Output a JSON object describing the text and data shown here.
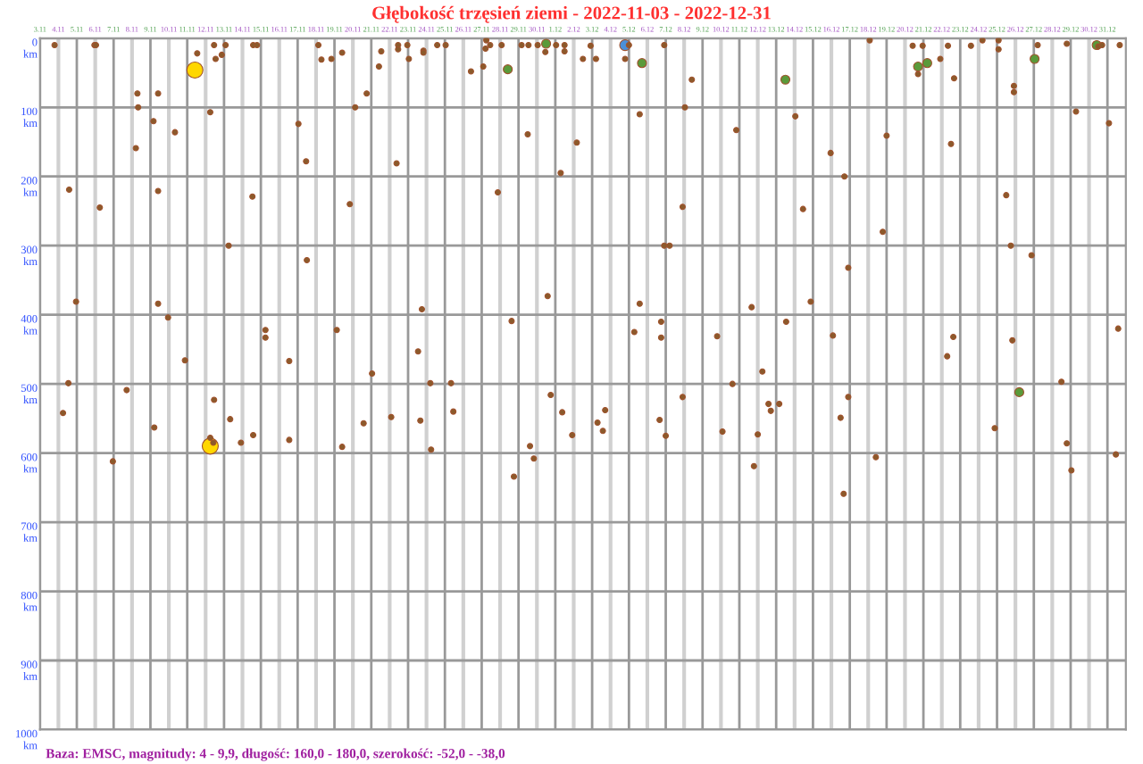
{
  "chart_data": {
    "type": "bubble",
    "title": "Głębokość trzęsień ziemi - 2022-11-03 - 2022-12-31",
    "annotations": [
      "Baza: EMSC, magnitudy: 4 - 9,9, długość: 160,0 - 180,0, szerokość: -52,0 - -38,0"
    ],
    "xlim": [
      "2022-11-03",
      "2023-01-01"
    ],
    "xticks": [
      {
        "value": "2022-11-03",
        "label": "3.11"
      },
      {
        "value": "2022-11-04",
        "label": "4.11"
      },
      {
        "value": "2022-11-05",
        "label": "5.11"
      },
      {
        "value": "2022-11-06",
        "label": "6.11"
      },
      {
        "value": "2022-11-07",
        "label": "7.11"
      },
      {
        "value": "2022-11-08",
        "label": "8.11"
      },
      {
        "value": "2022-11-09",
        "label": "9.11"
      },
      {
        "value": "2022-11-10",
        "label": "10.11"
      },
      {
        "value": "2022-11-11",
        "label": "11.11"
      },
      {
        "value": "2022-11-12",
        "label": "12.11"
      },
      {
        "value": "2022-11-13",
        "label": "13.11"
      },
      {
        "value": "2022-11-14",
        "label": "14.11"
      },
      {
        "value": "2022-11-15",
        "label": "15.11"
      },
      {
        "value": "2022-11-16",
        "label": "16.11"
      },
      {
        "value": "2022-11-17",
        "label": "17.11"
      },
      {
        "value": "2022-11-18",
        "label": "18.11"
      },
      {
        "value": "2022-11-19",
        "label": "19.11"
      },
      {
        "value": "2022-11-20",
        "label": "20.11"
      },
      {
        "value": "2022-11-21",
        "label": "21.11"
      },
      {
        "value": "2022-11-22",
        "label": "22.11"
      },
      {
        "value": "2022-11-23",
        "label": "23.11"
      },
      {
        "value": "2022-11-24",
        "label": "24.11"
      },
      {
        "value": "2022-11-25",
        "label": "25.11"
      },
      {
        "value": "2022-11-26",
        "label": "26.11"
      },
      {
        "value": "2022-11-27",
        "label": "27.11"
      },
      {
        "value": "2022-11-28",
        "label": "28.11"
      },
      {
        "value": "2022-11-29",
        "label": "29.11"
      },
      {
        "value": "2022-11-30",
        "label": "30.11"
      },
      {
        "value": "2022-12-01",
        "label": "1.12"
      },
      {
        "value": "2022-12-02",
        "label": "2.12"
      },
      {
        "value": "2022-12-03",
        "label": "3.12"
      },
      {
        "value": "2022-12-04",
        "label": "4.12"
      },
      {
        "value": "2022-12-05",
        "label": "5.12"
      },
      {
        "value": "2022-12-06",
        "label": "6.12"
      },
      {
        "value": "2022-12-07",
        "label": "7.12"
      },
      {
        "value": "2022-12-08",
        "label": "8.12"
      },
      {
        "value": "2022-12-09",
        "label": "9.12"
      },
      {
        "value": "2022-12-10",
        "label": "10.12"
      },
      {
        "value": "2022-12-11",
        "label": "11.12"
      },
      {
        "value": "2022-12-12",
        "label": "12.12"
      },
      {
        "value": "2022-12-13",
        "label": "13.12"
      },
      {
        "value": "2022-12-14",
        "label": "14.12"
      },
      {
        "value": "2022-12-15",
        "label": "15.12"
      },
      {
        "value": "2022-12-16",
        "label": "16.12"
      },
      {
        "value": "2022-12-17",
        "label": "17.12"
      },
      {
        "value": "2022-12-18",
        "label": "18.12"
      },
      {
        "value": "2022-12-19",
        "label": "19.12"
      },
      {
        "value": "2022-12-20",
        "label": "20.12"
      },
      {
        "value": "2022-12-21",
        "label": "21.12"
      },
      {
        "value": "2022-12-22",
        "label": "22.12"
      },
      {
        "value": "2022-12-23",
        "label": "23.12"
      },
      {
        "value": "2022-12-24",
        "label": "24.12"
      },
      {
        "value": "2022-12-25",
        "label": "25.12"
      },
      {
        "value": "2022-12-26",
        "label": "26.12"
      },
      {
        "value": "2022-12-27",
        "label": "27.12"
      },
      {
        "value": "2022-12-28",
        "label": "28.12"
      },
      {
        "value": "2022-12-29",
        "label": "29.12"
      },
      {
        "value": "2022-12-30",
        "label": "30.12"
      },
      {
        "value": "2022-12-31",
        "label": "31.12"
      }
    ],
    "ylim": [
      1000,
      0
    ],
    "yticks": [
      {
        "value": 0,
        "label": "0\nkm"
      },
      {
        "value": 100,
        "label": "100\nkm"
      },
      {
        "value": 200,
        "label": "200\nkm"
      },
      {
        "value": 300,
        "label": "300\nkm"
      },
      {
        "value": 400,
        "label": "400\nkm"
      },
      {
        "value": 500,
        "label": "500\nkm"
      },
      {
        "value": 600,
        "label": "600\nkm"
      },
      {
        "value": 700,
        "label": "700\nkm"
      },
      {
        "value": 800,
        "label": "800\nkm"
      },
      {
        "value": 900,
        "label": "900\nkm"
      },
      {
        "value": 1000,
        "label": "1000\nkm"
      }
    ],
    "grid": true,
    "series": [
      {
        "color": "#8b5a2b",
        "x": [
          "2022-11-03T19:00",
          "2022-11-04T14:00",
          "2022-11-05T23:00",
          "2022-11-06T01:00",
          "2022-11-06T06:00",
          "2022-11-08T07:00",
          "2022-11-08T08:00",
          "2022-11-08T05:00",
          "2022-11-09T04:00",
          "2022-11-09T10:00",
          "2022-11-09T10:00",
          "2022-11-10T08:00",
          "2022-11-11T13:00",
          "2022-11-12T06:00",
          "2022-11-12T13:00",
          "2022-11-12T11:00",
          "2022-11-12T21:00",
          "2022-11-13T02:00",
          "2022-11-13T06:00",
          "2022-11-14T13:00",
          "2022-11-14T14:00",
          "2022-11-14T19:00",
          "2022-11-17T01:00",
          "2022-11-17T11:00",
          "2022-11-18T03:00",
          "2022-11-18T07:00",
          "2022-11-18T20:00",
          "2022-11-19T10:00",
          "2022-11-19T20:00",
          "2022-11-20T03:00",
          "2022-11-20T18:00",
          "2022-11-21T10:00",
          "2022-11-21T13:00",
          "2022-11-22T09:00",
          "2022-11-22T11:00",
          "2022-11-22T11:00",
          "2022-11-22T23:00",
          "2022-11-23T01:00",
          "2022-11-23T20:00",
          "2022-11-23T20:00",
          "2022-11-24T14:00",
          "2022-11-25T01:00",
          "2022-11-26T10:00",
          "2022-11-27T02:00",
          "2022-11-27T05:00",
          "2022-11-27T06:00",
          "2022-11-27T11:00",
          "2022-11-27T21:00",
          "2022-11-28T02:00",
          "2022-11-29T04:00",
          "2022-11-29T13:00",
          "2022-11-29T12:00",
          "2022-11-30T01:00",
          "2022-11-30T11:00",
          "2022-12-01T01:00",
          "2022-12-01T12:00",
          "2022-12-01T12:00",
          "2022-12-01T07:00",
          "2022-12-02T04:00",
          "2022-12-02T12:00",
          "2022-12-02T22:00",
          "2022-12-03T05:00",
          "2022-12-05T00:00",
          "2022-12-04T19:00",
          "2022-12-05T14:00",
          "2022-12-06T22:00",
          "2022-12-08T10:00",
          "2022-12-08T01:00",
          "2022-12-07T22:00",
          "2022-12-06T22:00",
          "2022-12-07T05:00",
          "2022-12-10T20:00",
          "2022-12-14T01:00",
          "2022-12-14T11:00",
          "2022-12-15T23:00",
          "2022-12-16T17:00",
          "2022-12-18T02:00",
          "2022-12-19T00:00",
          "2022-12-18T19:00",
          "2022-12-20T10:00",
          "2022-12-20T23:00",
          "2022-12-20T17:00",
          "2022-12-21T22:00",
          "2022-12-22T08:00",
          "2022-12-22T16:00",
          "2022-12-22T12:00",
          "2022-12-23T14:00",
          "2022-12-24T05:00",
          "2022-12-25T02:00",
          "2022-12-25T02:00",
          "2022-12-25T22:00",
          "2022-12-25T22:00",
          "2022-12-25T12:00",
          "2022-12-25T18:00",
          "2022-12-27T05:00",
          "2022-12-28T19:00",
          "2022-12-29T07:00",
          "2022-12-30T12:00",
          "2022-12-30T17:00",
          "2022-12-31T02:00",
          "2022-12-31T16:00",
          "2022-11-04T23:00",
          "2022-11-04T13:00",
          "2022-11-04T06:00",
          "2022-11-06T23:00",
          "2022-11-07T17:00",
          "2022-11-09T10:00",
          "2022-11-09T23:00",
          "2022-11-09T05:00",
          "2022-11-10T21:00",
          "2022-11-12T11:00",
          "2022-11-12T06:00",
          "2022-11-12T10:00",
          "2022-11-13T08:00",
          "2022-11-13T22:00",
          "2022-11-14T14:00",
          "2022-11-15T06:00",
          "2022-11-15T06:00",
          "2022-11-16T13:00",
          "2022-11-16T13:00",
          "2022-11-17T12:00",
          "2022-11-19T03:00",
          "2022-11-19T10:00",
          "2022-11-20T14:00",
          "2022-11-21T01:00",
          "2022-11-22T02:00",
          "2022-11-23T18:00",
          "2022-11-23T13:00",
          "2022-11-24T05:00",
          "2022-11-23T16:00",
          "2022-11-24T06:00",
          "2022-11-25T08:00",
          "2022-11-25T11:00",
          "2022-11-28T15:00",
          "2022-11-29T15:00",
          "2022-11-29T20:00",
          "2022-11-28T18:00",
          "2022-11-30T14:00",
          "2022-11-30T18:00",
          "2022-12-01T09:00",
          "2022-12-01T22:00",
          "2022-12-26T21:00",
          "2022-12-16T22:00",
          "2022-12-05T14:00",
          "2022-12-05T07:00",
          "2022-12-06T18:00",
          "2022-12-06T18:00",
          "2022-12-07T22:00",
          "2022-12-03T07:00",
          "2022-12-03T17:00",
          "2022-12-03T14:00",
          "2022-12-06T16:00",
          "2022-12-07T00:00",
          "2022-12-09T19:00",
          "2022-12-10T15:00",
          "2022-12-10T02:00",
          "2022-12-11T16:00",
          "2022-12-12T06:00",
          "2022-12-12T14:00",
          "2022-12-12T17:00",
          "2022-12-13T04:00",
          "2022-12-12T00:00",
          "2022-12-11T19:00",
          "2022-12-13T13:00",
          "2022-12-14T21:00",
          "2022-12-16T02:00",
          "2022-12-16T22:00",
          "2022-12-16T12:00",
          "2022-12-18T10:00",
          "2022-12-16T16:00",
          "2022-12-22T15:00",
          "2022-12-22T07:00",
          "2022-12-25T20:00",
          "2022-12-24T21:00",
          "2022-12-28T12:00",
          "2022-12-28T19:00",
          "2022-12-29T01:00",
          "2022-12-31T11:00",
          "2022-12-31T14:00"
        ],
        "values": [
          10,
          219,
          10,
          10,
          245,
          80,
          100,
          159,
          120,
          80,
          221,
          136,
          22,
          107,
          30,
          10,
          24,
          10,
          300,
          229,
          10,
          10,
          124,
          178,
          10,
          31,
          30,
          21,
          240,
          100,
          80,
          41,
          19,
          181,
          10,
          16,
          10,
          30,
          18,
          21,
          10,
          10,
          48,
          41,
          15,
          3,
          10,
          223,
          10,
          10,
          10,
          139,
          10,
          20,
          10,
          19,
          10,
          195,
          151,
          30,
          11,
          30,
          10,
          30,
          110,
          10,
          60,
          100,
          244,
          300,
          300,
          133,
          113,
          247,
          166,
          200,
          3,
          141,
          280,
          11,
          11,
          52,
          30,
          11,
          58,
          153,
          11,
          3,
          3,
          16,
          69,
          78,
          227,
          300,
          10,
          8,
          106,
          12,
          10,
          123,
          10,
          381,
          499,
          542,
          612,
          509,
          384,
          404,
          563,
          466,
          523,
          578,
          585,
          551,
          585,
          574,
          422,
          433,
          467,
          581,
          321,
          422,
          591,
          557,
          485,
          548,
          392,
          453,
          499,
          553,
          595,
          499,
          540,
          409,
          590,
          608,
          634,
          373,
          516,
          541,
          574,
          314,
          332,
          384,
          425,
          410,
          433,
          519,
          556,
          538,
          568,
          552,
          575,
          431,
          500,
          569,
          389,
          482,
          529,
          539,
          529,
          573,
          619,
          410,
          381,
          430,
          519,
          549,
          606,
          659,
          432,
          460,
          437,
          564,
          497,
          586,
          625,
          602,
          420
        ],
        "sizes": [
          0.11,
          0.11,
          0.11,
          0.11,
          0.11,
          0.11,
          0.11,
          0.11,
          0.11,
          0.11,
          0.11,
          0.11,
          0.11,
          0.11,
          0.11,
          0.11,
          0.11,
          0.11,
          0.11,
          0.11,
          0.11,
          0.11,
          0.11,
          0.11,
          0.11,
          0.11,
          0.11,
          0.11,
          0.11,
          0.11,
          0.11,
          0.11,
          0.11,
          0.11,
          0.11,
          0.11,
          0.11,
          0.11,
          0.11,
          0.11,
          0.11,
          0.11,
          0.11,
          0.11,
          0.11,
          0.11,
          0.11,
          0.11,
          0.11,
          0.11,
          0.11,
          0.11,
          0.11,
          0.11,
          0.11,
          0.11,
          0.11,
          0.11,
          0.11,
          0.11,
          0.11,
          0.11,
          0.11,
          0.11,
          0.11,
          0.11,
          0.11,
          0.11,
          0.11,
          0.11,
          0.11,
          0.11,
          0.11,
          0.11,
          0.11,
          0.11,
          0.11,
          0.11,
          0.11,
          0.11,
          0.11,
          0.11,
          0.11,
          0.11,
          0.11,
          0.11,
          0.11,
          0.11,
          0.11,
          0.11,
          0.11,
          0.11,
          0.11,
          0.11,
          0.11,
          0.11,
          0.11,
          0.11,
          0.11,
          0.11,
          0.11,
          0.11,
          0.11,
          0.11,
          0.11,
          0.11,
          0.11,
          0.11,
          0.11,
          0.11,
          0.11,
          0.11,
          0.11,
          0.11,
          0.11,
          0.11,
          0.11,
          0.11,
          0.11,
          0.11,
          0.11,
          0.11,
          0.11,
          0.11,
          0.11,
          0.11,
          0.11,
          0.11,
          0.11,
          0.11,
          0.11,
          0.11,
          0.11,
          0.11,
          0.11,
          0.11,
          0.11,
          0.11,
          0.11,
          0.11,
          0.11,
          0.11,
          0.11,
          0.11,
          0.11,
          0.11,
          0.11,
          0.11,
          0.11,
          0.11,
          0.11,
          0.11,
          0.11,
          0.11,
          0.11,
          0.11,
          0.11,
          0.11,
          0.11,
          0.11,
          0.11,
          0.11,
          0.11,
          0.11,
          0.11,
          0.11,
          0.11,
          0.11,
          0.11,
          0.11,
          0.11,
          0.11,
          0.11,
          0.11,
          0.11,
          0.11,
          0.11,
          0.11,
          0.11
        ]
      },
      {
        "color": "#5a9a3a",
        "x": [
          "2022-11-28T10:00",
          "2022-11-30T12:00",
          "2022-12-05T17:00",
          "2022-12-13T12:00",
          "2022-12-20T17:00",
          "2022-12-21T05:00",
          "2022-12-27T01:00",
          "2022-12-30T10:00",
          "2022-12-26T05:00"
        ],
        "values": [
          45,
          8,
          36,
          60,
          41,
          36,
          30,
          10,
          512
        ],
        "sizes": [
          0.31,
          0.31,
          0.31,
          0.31,
          0.31,
          0.31,
          0.31,
          0.31,
          0.31
        ]
      },
      {
        "color": "#ffd700",
        "x": [
          "2022-11-11T10:00",
          "2022-11-12T06:00"
        ],
        "values": [
          46,
          590
        ],
        "sizes": [
          1,
          1
        ]
      },
      {
        "color": "#4a90d9",
        "x": [
          "2022-12-04T19:00"
        ],
        "values": [
          10
        ],
        "sizes": [
          0.45
        ]
      }
    ]
  }
}
